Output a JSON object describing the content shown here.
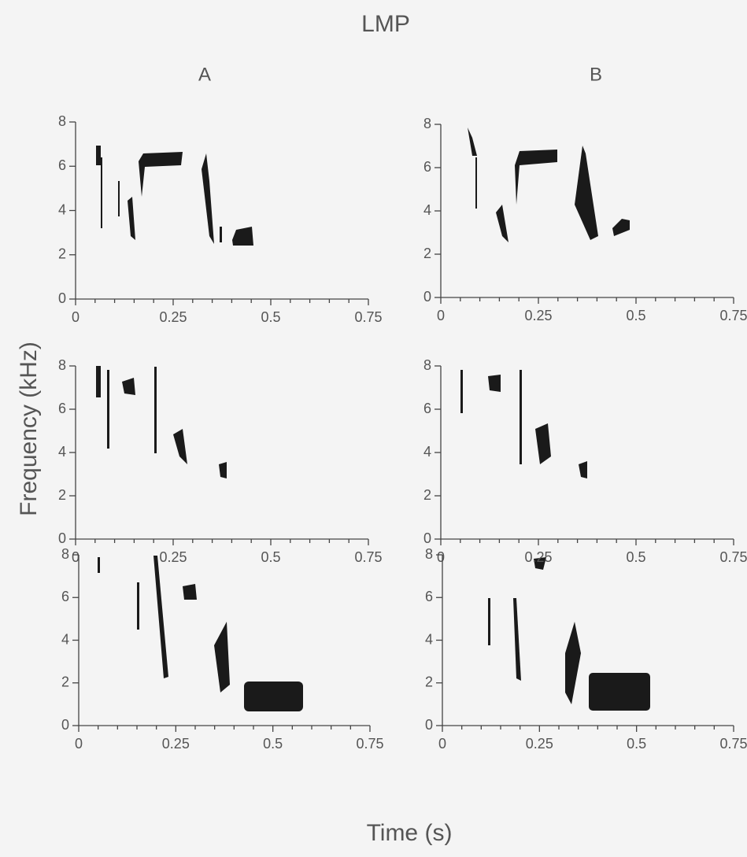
{
  "title": "LMP",
  "columns": [
    "A",
    "B"
  ],
  "x_label": "Time (s)",
  "y_label": "Frequency (kHz)",
  "chart_data": [
    {
      "type": "spectrogram",
      "xlim": [
        0,
        0.75
      ],
      "xticks": [
        0,
        0.25,
        0.5,
        0.75
      ],
      "xticks_minor": [
        0.05,
        0.1,
        0.15,
        0.2,
        0.3,
        0.35,
        0.4,
        0.45,
        0.55,
        0.6,
        0.65,
        0.7
      ],
      "ylim": [
        0,
        8
      ],
      "yticks": [
        0,
        2,
        4,
        6,
        8
      ]
    },
    {
      "type": "spectrogram",
      "xlim": [
        0,
        0.75
      ],
      "xticks": [
        0,
        0.25,
        0.5,
        0.75
      ],
      "xticks_minor": [
        0.05,
        0.1,
        0.15,
        0.2,
        0.3,
        0.35,
        0.4,
        0.45,
        0.55,
        0.6,
        0.65,
        0.7
      ],
      "ylim": [
        0,
        8
      ],
      "yticks": [
        0,
        2,
        4,
        6,
        8
      ]
    },
    {
      "type": "spectrogram",
      "xlim": [
        0,
        0.75
      ],
      "xticks": [
        0,
        0.25,
        0.5,
        0.75
      ],
      "xticks_minor": [
        0.05,
        0.1,
        0.15,
        0.2,
        0.3,
        0.35,
        0.4,
        0.45,
        0.55,
        0.6,
        0.65,
        0.7
      ],
      "ylim": [
        0,
        8
      ],
      "yticks": [
        0,
        2,
        4,
        6,
        8
      ]
    },
    {
      "type": "spectrogram",
      "xlim": [
        0,
        0.75
      ],
      "xticks": [
        0,
        0.25,
        0.5,
        0.75
      ],
      "xticks_minor": [
        0.05,
        0.1,
        0.15,
        0.2,
        0.3,
        0.35,
        0.4,
        0.45,
        0.55,
        0.6,
        0.65,
        0.7
      ],
      "ylim": [
        0,
        8
      ],
      "yticks": [
        0,
        2,
        4,
        6,
        8
      ]
    },
    {
      "type": "spectrogram",
      "xlim": [
        0,
        0.75
      ],
      "xticks": [
        0,
        0.25,
        0.5,
        0.75
      ],
      "xticks_minor": [
        0.05,
        0.1,
        0.15,
        0.2,
        0.3,
        0.35,
        0.4,
        0.45,
        0.55,
        0.6,
        0.65,
        0.7
      ],
      "ylim": [
        0,
        8
      ],
      "yticks": [
        0,
        2,
        4,
        6,
        8
      ]
    },
    {
      "type": "spectrogram",
      "xlim": [
        0,
        0.75
      ],
      "xticks": [
        0,
        0.25,
        0.5,
        0.75
      ],
      "xticks_minor": [
        0.05,
        0.1,
        0.15,
        0.2,
        0.3,
        0.35,
        0.4,
        0.45,
        0.55,
        0.6,
        0.65,
        0.7
      ],
      "ylim": [
        0,
        8
      ],
      "yticks": [
        0,
        2,
        4,
        6,
        8
      ]
    }
  ]
}
